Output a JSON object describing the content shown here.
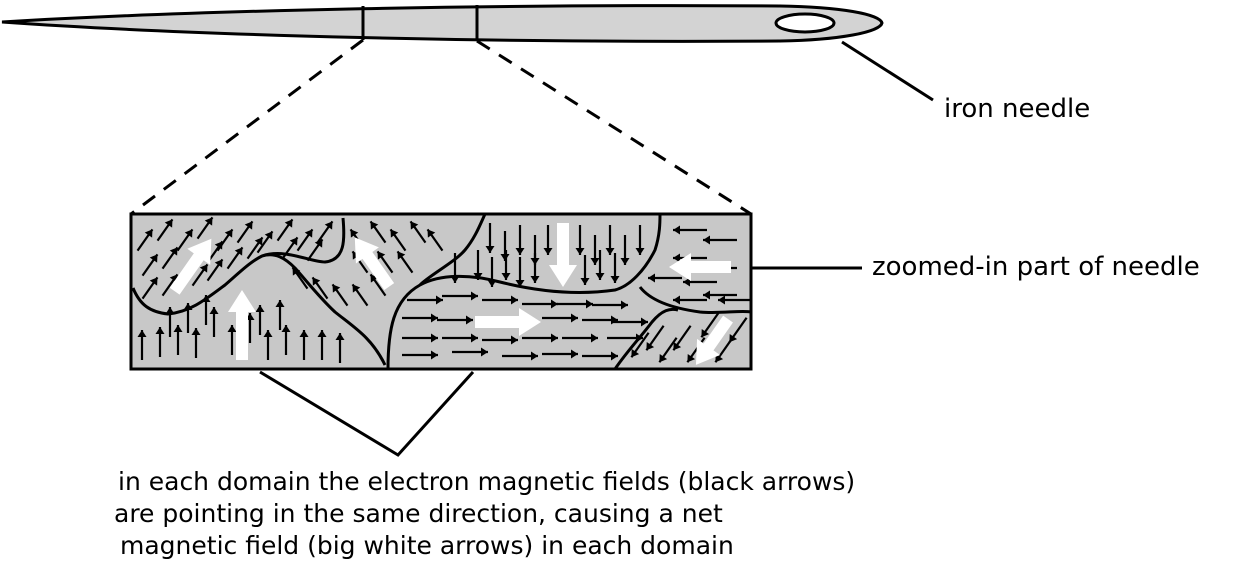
{
  "labels": {
    "needle": "iron needle",
    "zoom": "zoomed-in part of needle",
    "caption_lines": [
      "in each domain the electron magnetic fields (black arrows)",
      "are pointing in the same direction, causing a net",
      "magnetic field (big white arrows) in each domain"
    ]
  },
  "colors": {
    "domain_fill": "#c8c8c8",
    "needle_fill": "#d3d3d3",
    "ink": "#000000",
    "big_arrow": "#ffffff"
  }
}
